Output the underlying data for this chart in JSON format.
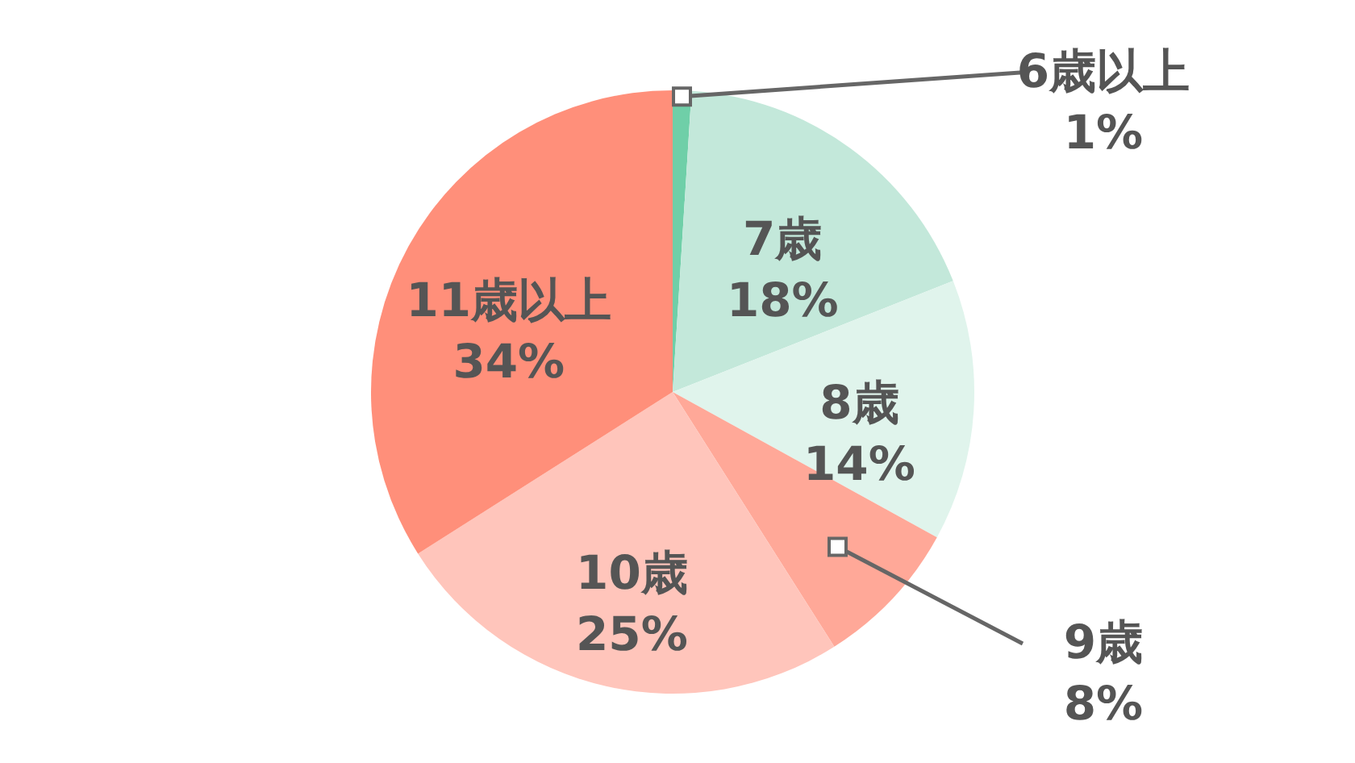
{
  "chart_data": {
    "type": "pie",
    "categories": [
      "6歳以上",
      "7歳",
      "8歳",
      "9歳",
      "10歳",
      "11歳以上"
    ],
    "values": [
      1,
      18,
      14,
      8,
      25,
      34
    ],
    "value_labels": [
      "1%",
      "18%",
      "14%",
      "8%",
      "25%",
      "34%"
    ],
    "colors": [
      "#6fcfa8",
      "#c3e8da",
      "#e0f4ec",
      "#ffa898",
      "#ffc5bb",
      "#ff8f7a"
    ]
  }
}
